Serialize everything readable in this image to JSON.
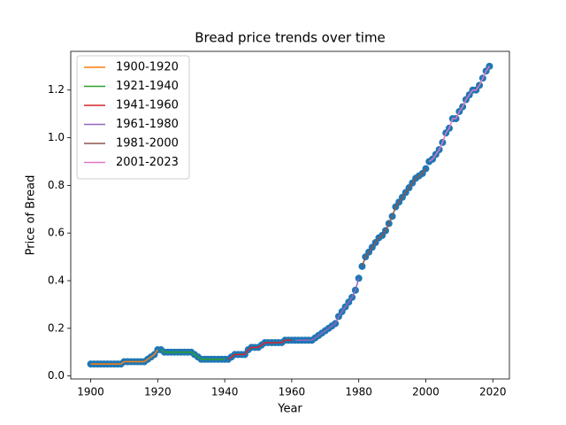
{
  "chart_data": {
    "type": "line",
    "title": "Bread price trends over time",
    "x_label": "Year",
    "y_label": "Price of Bread",
    "marker_color": "#1f77b4",
    "legend": "upper left",
    "grid": false,
    "xlim": [
      1894.05,
      2024.95
    ],
    "xticks": [
      1900,
      1920,
      1940,
      1960,
      1980,
      2000,
      2020
    ],
    "ylim": [
      -0.0125,
      1.3625
    ],
    "yticks": [
      {
        "value": 0,
        "label": "0.0"
      },
      0.2,
      0.4,
      0.6,
      0.8,
      {
        "value": 1,
        "label": "1.0"
      },
      1.2
    ],
    "series": [
      {
        "name": "1900-1920",
        "color": "#ff7f0e",
        "x": [
          1900,
          1901,
          1902,
          1903,
          1904,
          1905,
          1906,
          1907,
          1908,
          1909,
          1910,
          1911,
          1912,
          1913,
          1914,
          1915,
          1916,
          1917,
          1918,
          1919,
          1920
        ],
        "values": [
          0.05,
          0.05,
          0.05,
          0.05,
          0.05,
          0.05,
          0.05,
          0.05,
          0.05,
          0.05,
          0.06,
          0.06,
          0.06,
          0.06,
          0.06,
          0.06,
          0.06,
          0.07,
          0.08,
          0.09,
          0.11
        ]
      },
      {
        "name": "1921-1940",
        "color": "#2ca02c",
        "x": [
          1921,
          1922,
          1923,
          1924,
          1925,
          1926,
          1927,
          1928,
          1929,
          1930,
          1931,
          1932,
          1933,
          1934,
          1935,
          1936,
          1937,
          1938,
          1939,
          1940
        ],
        "values": [
          0.11,
          0.1,
          0.1,
          0.1,
          0.1,
          0.1,
          0.1,
          0.1,
          0.1,
          0.1,
          0.09,
          0.08,
          0.07,
          0.07,
          0.07,
          0.07,
          0.07,
          0.07,
          0.07,
          0.07
        ]
      },
      {
        "name": "1941-1960",
        "color": "#d62728",
        "x": [
          1941,
          1942,
          1943,
          1944,
          1945,
          1946,
          1947,
          1948,
          1949,
          1950,
          1951,
          1952,
          1953,
          1954,
          1955,
          1956,
          1957,
          1958,
          1959,
          1960
        ],
        "values": [
          0.07,
          0.08,
          0.09,
          0.09,
          0.09,
          0.09,
          0.11,
          0.12,
          0.12,
          0.12,
          0.13,
          0.14,
          0.14,
          0.14,
          0.14,
          0.14,
          0.14,
          0.15,
          0.15,
          0.15
        ]
      },
      {
        "name": "1961-1980",
        "color": "#9467bd",
        "x": [
          1961,
          1962,
          1963,
          1964,
          1965,
          1966,
          1967,
          1968,
          1969,
          1970,
          1971,
          1972,
          1973,
          1974,
          1975,
          1976,
          1977,
          1978,
          1979,
          1980
        ],
        "values": [
          0.15,
          0.15,
          0.15,
          0.15,
          0.15,
          0.15,
          0.16,
          0.17,
          0.18,
          0.19,
          0.2,
          0.21,
          0.22,
          0.25,
          0.27,
          0.29,
          0.31,
          0.33,
          0.36,
          0.41
        ]
      },
      {
        "name": "1981-2000",
        "color": "#8c564b",
        "x": [
          1981,
          1982,
          1983,
          1984,
          1985,
          1986,
          1987,
          1988,
          1989,
          1990,
          1991,
          1992,
          1993,
          1994,
          1995,
          1996,
          1997,
          1998,
          1999,
          2000
        ],
        "values": [
          0.46,
          0.5,
          0.52,
          0.54,
          0.56,
          0.58,
          0.59,
          0.61,
          0.64,
          0.67,
          0.71,
          0.73,
          0.75,
          0.77,
          0.79,
          0.81,
          0.83,
          0.84,
          0.85,
          0.87
        ]
      },
      {
        "name": "2001-2023",
        "color": "#e377c2",
        "x": [
          2001,
          2002,
          2003,
          2004,
          2005,
          2006,
          2007,
          2008,
          2009,
          2010,
          2011,
          2012,
          2013,
          2014,
          2015,
          2016,
          2017,
          2018,
          2019
        ],
        "values": [
          0.9,
          0.91,
          0.93,
          0.95,
          0.98,
          1.02,
          1.04,
          1.08,
          1.08,
          1.11,
          1.13,
          1.16,
          1.18,
          1.2,
          1.2,
          1.22,
          1.25,
          1.28,
          1.3
        ]
      }
    ]
  }
}
